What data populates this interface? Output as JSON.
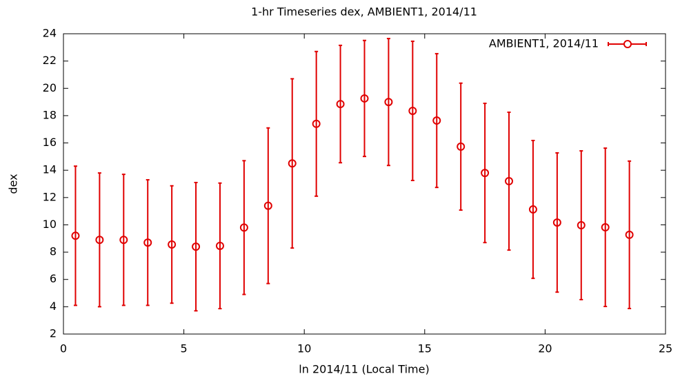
{
  "chart_data": {
    "type": "errorbar",
    "title": "1-hr Timeseries dex, AMBIENT1, 2014/11",
    "x_label": "ln 2014/11 (Local Time)",
    "y_label": "dex",
    "x": [
      0.5,
      1.5,
      2.5,
      3.5,
      4.5,
      5.5,
      6.5,
      7.5,
      8.5,
      9.5,
      10.5,
      11.5,
      12.5,
      13.5,
      14.5,
      15.5,
      16.5,
      17.5,
      18.5,
      19.5,
      20.5,
      21.5,
      22.5,
      23.5
    ],
    "series": [
      {
        "name": "AMBIENT1, 2014/11",
        "color": "#e00000",
        "values": [
          9.2,
          8.9,
          8.9,
          8.7,
          8.56,
          8.4,
          8.46,
          9.8,
          11.4,
          14.5,
          17.4,
          18.85,
          19.26,
          19.0,
          18.35,
          17.64,
          15.73,
          13.8,
          13.2,
          11.13,
          10.17,
          9.97,
          9.82,
          9.27
        ],
        "errors": [
          5.1,
          4.9,
          4.8,
          4.6,
          4.3,
          4.7,
          4.6,
          4.9,
          5.7,
          6.2,
          5.3,
          4.3,
          4.25,
          4.65,
          5.1,
          4.9,
          4.65,
          5.1,
          5.05,
          5.05,
          5.1,
          5.45,
          5.8,
          5.4
        ]
      }
    ],
    "xlim": [
      0,
      25
    ],
    "xticks": [
      0,
      5,
      10,
      15,
      20,
      25
    ],
    "ylim": [
      2,
      24
    ],
    "yticks": [
      2,
      4,
      6,
      8,
      10,
      12,
      14,
      16,
      18,
      20,
      22,
      24
    ],
    "legend": "top-right"
  }
}
